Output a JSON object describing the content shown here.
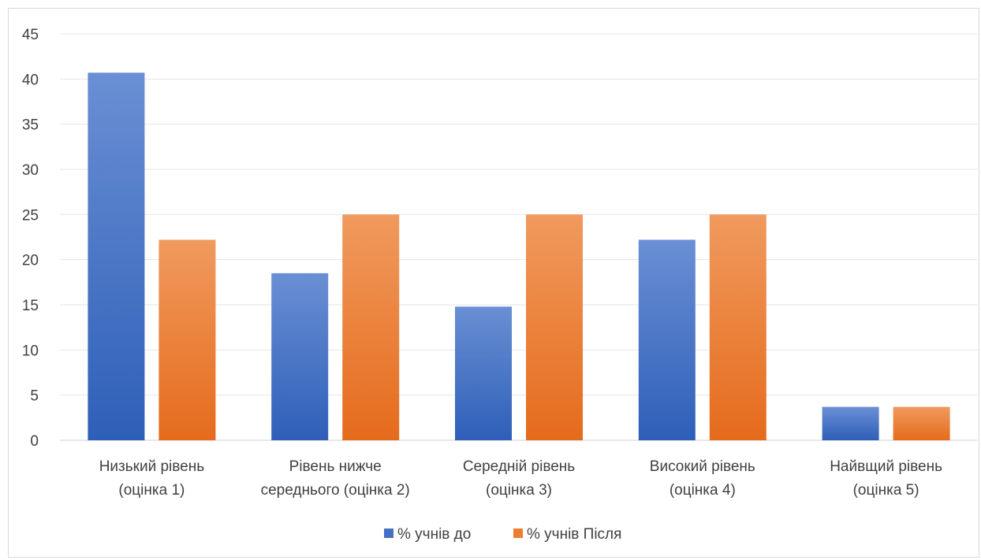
{
  "chart_data": {
    "type": "bar",
    "categories": [
      [
        "Низький рівень",
        "(оцінка 1)"
      ],
      [
        "Рівень нижче",
        "середнього (оцінка 2)"
      ],
      [
        "Середній рівень",
        "(оцінка 3)"
      ],
      [
        "Високий рівень",
        "(оцінка 4)"
      ],
      [
        "Найвщий рівень",
        "(оцінка 5)"
      ]
    ],
    "series": [
      {
        "name": "% учнів до",
        "values": [
          40.7,
          18.5,
          14.8,
          22.2,
          3.7
        ],
        "color": "#4472C4"
      },
      {
        "name": "% учнів Після",
        "values": [
          22.2,
          25.0,
          25.0,
          25.0,
          3.7
        ],
        "color": "#ED7D31"
      }
    ],
    "title": "",
    "xlabel": "",
    "ylabel": "",
    "ylim": [
      0,
      45
    ],
    "yticks": [
      "0",
      "5",
      "10",
      "15",
      "20",
      "25",
      "30",
      "35",
      "40",
      "45"
    ],
    "grid": true,
    "legend": "bottom"
  }
}
